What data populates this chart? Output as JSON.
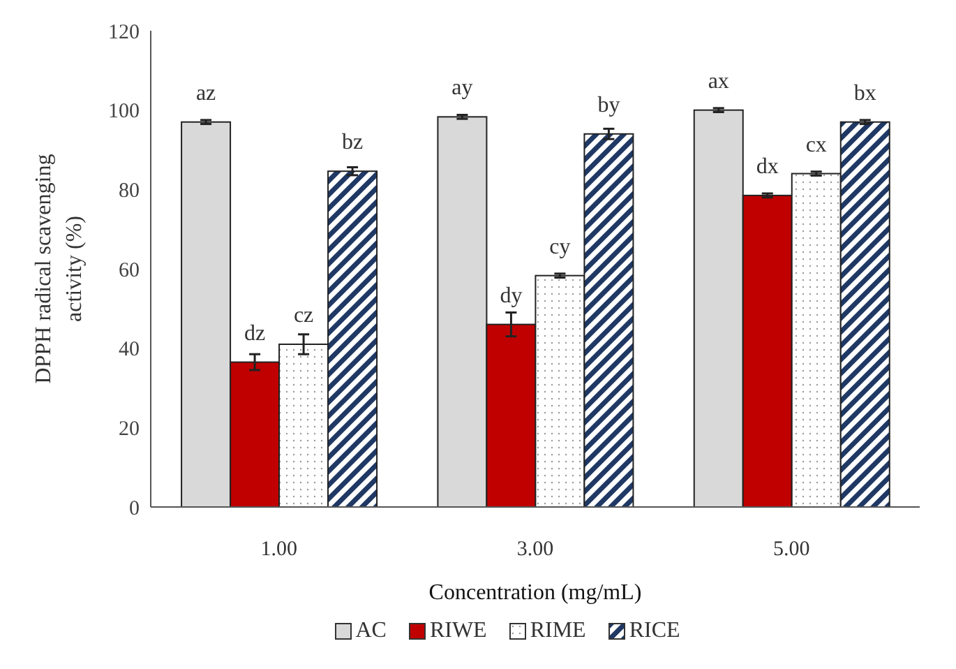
{
  "chart_data": {
    "type": "bar",
    "xlabel": "Concentration (mg/mL)",
    "ylabel": "DPPH radical scavenging activity (%)",
    "categories": [
      "1.00",
      "3.00",
      "5.00"
    ],
    "series": [
      {
        "name": "AC",
        "color": "#d9d9d9",
        "values": [
          97,
          98.3,
          100
        ],
        "errors": [
          0.5,
          0.5,
          0.5
        ],
        "value_labels": [
          "az",
          "ay",
          "ax"
        ]
      },
      {
        "name": "RIWE",
        "color": "#c00000",
        "values": [
          36.5,
          46,
          78.5
        ],
        "errors": [
          2,
          3,
          0.5
        ],
        "value_labels": [
          "dz",
          "dy",
          "dx"
        ]
      },
      {
        "name": "RIME",
        "color": "#ffffff",
        "values": [
          41,
          58.3,
          84
        ],
        "errors": [
          2.5,
          0.5,
          0.5
        ],
        "value_labels": [
          "cz",
          "cy",
          "cx"
        ]
      },
      {
        "name": "RICE",
        "color": "#1f3864",
        "values": [
          84.6,
          94,
          97
        ],
        "errors": [
          1,
          1.3,
          0.5
        ],
        "value_labels": [
          "bz",
          "by",
          "bx"
        ]
      }
    ],
    "ylim": [
      0,
      120
    ],
    "yticks": [
      0,
      20,
      40,
      60,
      80,
      100,
      120
    ],
    "grid": false,
    "legend": "bottom"
  }
}
